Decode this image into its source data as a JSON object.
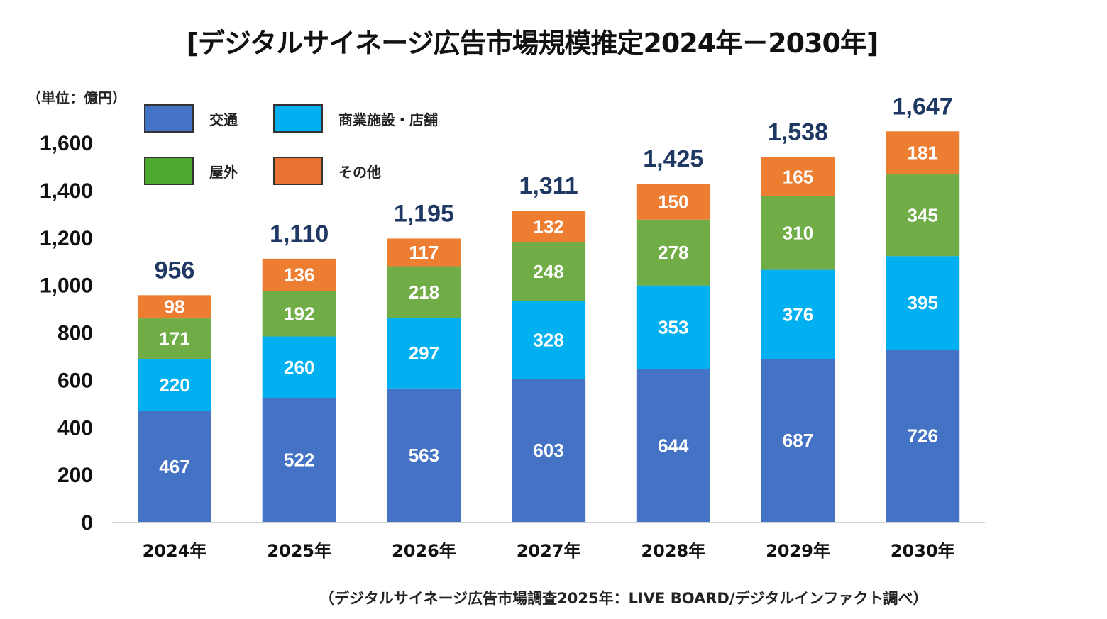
{
  "chart_data": {
    "type": "bar",
    "stacked": true,
    "title": "[デジタルサイネージ広告市場規模推定2024年－2030年]",
    "unit_label": "（単位：億円）",
    "source": "（デジタルサイネージ広告市場調査2025年：LIVE BOARD/デジタルインファクト調べ）",
    "categories": [
      "2024年",
      "2025年",
      "2026年",
      "2027年",
      "2028年",
      "2029年",
      "2030年"
    ],
    "series": [
      {
        "name": "交通",
        "color": "#4472C4",
        "values": [
          467,
          522,
          563,
          603,
          644,
          687,
          726
        ]
      },
      {
        "name": "商業施設・店舗",
        "color": "#00B0F0",
        "values": [
          220,
          260,
          297,
          328,
          353,
          376,
          395
        ]
      },
      {
        "name": "屋外",
        "color": "#70AD47",
        "values": [
          171,
          192,
          218,
          248,
          278,
          310,
          345
        ]
      },
      {
        "name": "その他",
        "color": "#ED7D31",
        "values": [
          98,
          136,
          117,
          132,
          150,
          165,
          181
        ]
      }
    ],
    "totals": [
      "956",
      "1,110",
      "1,195",
      "1,311",
      "1,425",
      "1,538",
      "1,647"
    ],
    "total_color": "#1F3864",
    "y_ticks": [
      "0",
      "200",
      "400",
      "600",
      "800",
      "1,000",
      "1,200",
      "1,400",
      "1,600"
    ],
    "ylim": [
      0,
      1600
    ],
    "grid": false,
    "legend_placement": "top-left"
  }
}
